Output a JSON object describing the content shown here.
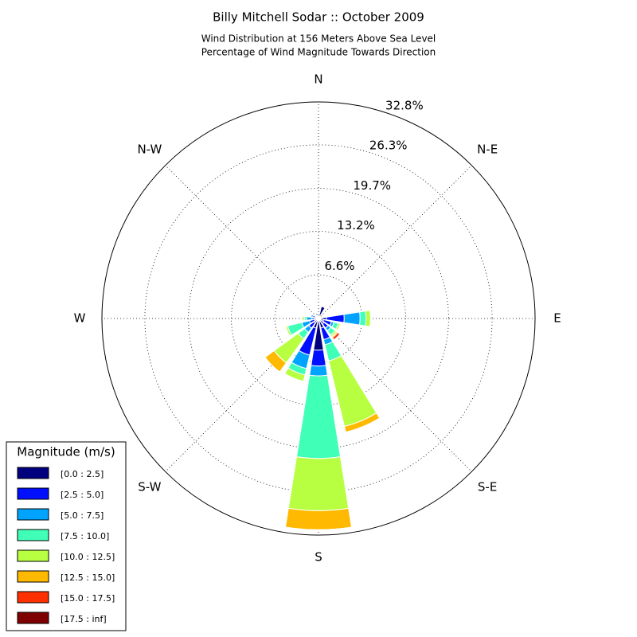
{
  "chart_data": {
    "type": "windrose",
    "title": "Billy Mitchell Sodar :: October 2009",
    "subtitle": [
      "Wind Distribution at 156 Meters Above Sea Level",
      "Percentage of Wind Magnitude Towards Direction"
    ],
    "categories": [
      "N",
      null,
      "N-E",
      null,
      "E",
      null,
      "S-E",
      null,
      "S",
      null,
      "S-W",
      null,
      "W",
      null,
      "N-W",
      null
    ],
    "ylim": [
      0,
      32.8
    ],
    "yticks": [
      {
        "value": 6.6,
        "label": "6.6%"
      },
      {
        "value": 13.2,
        "label": "13.2%"
      },
      {
        "value": 19.7,
        "label": "19.7%"
      },
      {
        "value": 26.3,
        "label": "26.3%"
      },
      {
        "value": 32.8,
        "label": "32.8%"
      }
    ],
    "grid": true,
    "legend_title": "Magnitude (m/s)",
    "legend_position": "lower left",
    "series": [
      {
        "name": "[0.0 : 2.5]",
        "color": "#00007f",
        "values": [
          0.3,
          1.9,
          0.3,
          0.3,
          1.2,
          0.8,
          1.0,
          1.5,
          4.8,
          1.5,
          0.8,
          0.6,
          0.5,
          0.6,
          0.4,
          0.5
        ]
      },
      {
        "name": "[2.5 : 5.0]",
        "color": "#0010ff",
        "values": [
          0,
          0,
          0,
          0.2,
          2.7,
          1.2,
          0.8,
          1.8,
          2.4,
          4.2,
          1.0,
          0.8,
          0.5,
          0.3,
          0.2,
          0.3
        ]
      },
      {
        "name": "[5.0 : 7.5]",
        "color": "#00a4ff",
        "values": [
          0,
          0,
          0,
          0,
          2.4,
          0.4,
          0.5,
          0.8,
          1.5,
          2.1,
          0.8,
          1.2,
          0.8,
          0.3,
          0,
          0
        ]
      },
      {
        "name": "[7.5 : 10.0]",
        "color": "#40ffb7",
        "values": [
          0,
          0,
          0,
          0,
          0.9,
          0.7,
          0.8,
          2.5,
          12.5,
          1.0,
          1.2,
          2.2,
          0.3,
          0,
          0,
          0
        ]
      },
      {
        "name": "[10.0 : 12.5]",
        "color": "#b7ff40",
        "values": [
          0,
          0,
          0,
          0,
          0.7,
          0.3,
          0.3,
          10.2,
          7.9,
          1.0,
          4.5,
          0.3,
          0.3,
          0,
          0,
          0
        ]
      },
      {
        "name": "[12.5 : 15.0]",
        "color": "#ffb900",
        "values": [
          0,
          0,
          0,
          0,
          0,
          0,
          0.2,
          0.9,
          2.9,
          0,
          1.7,
          0,
          0,
          0,
          0,
          0
        ]
      },
      {
        "name": "[15.0 : 17.5]",
        "color": "#ff3000",
        "values": [
          0,
          0,
          0,
          0,
          0,
          0,
          0.4,
          0,
          0,
          0,
          0,
          0,
          0,
          0,
          0,
          0
        ]
      },
      {
        "name": "[17.5 : inf]",
        "color": "#7f0000",
        "values": [
          0,
          0,
          0,
          0,
          0,
          0,
          0,
          0,
          0,
          0,
          0,
          0,
          0,
          0,
          0,
          0
        ]
      }
    ]
  }
}
